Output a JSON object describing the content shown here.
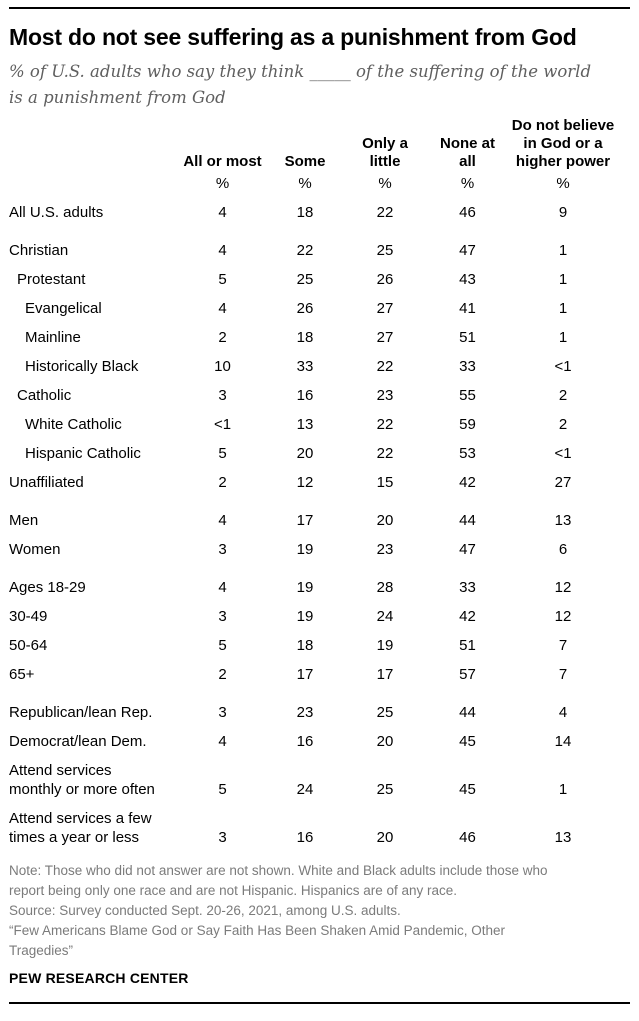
{
  "chart_data": {
    "type": "table",
    "title": "Most do not see suffering as a punishment from God",
    "subtitle": "% of U.S. adults who say they think _____ of the suffering of the world is a punishment from God",
    "unit": "%",
    "columns": [
      "All or most",
      "Some",
      "Only a\nlittle",
      "None at\nall",
      "Do not believe\nin God or a\nhigher power"
    ],
    "rows": [
      {
        "label": "All U.S. adults",
        "indent": 0,
        "gap": false,
        "values": [
          "4",
          "18",
          "22",
          "46",
          "9"
        ]
      },
      {
        "label": "Christian",
        "indent": 0,
        "gap": true,
        "values": [
          "4",
          "22",
          "25",
          "47",
          "1"
        ]
      },
      {
        "label": "Protestant",
        "indent": 1,
        "gap": false,
        "values": [
          "5",
          "25",
          "26",
          "43",
          "1"
        ]
      },
      {
        "label": "Evangelical",
        "indent": 2,
        "gap": false,
        "values": [
          "4",
          "26",
          "27",
          "41",
          "1"
        ]
      },
      {
        "label": "Mainline",
        "indent": 2,
        "gap": false,
        "values": [
          "2",
          "18",
          "27",
          "51",
          "1"
        ]
      },
      {
        "label": "Historically Black",
        "indent": 2,
        "gap": false,
        "values": [
          "10",
          "33",
          "22",
          "33",
          "<1"
        ]
      },
      {
        "label": "Catholic",
        "indent": 1,
        "gap": false,
        "values": [
          "3",
          "16",
          "23",
          "55",
          "2"
        ]
      },
      {
        "label": "White Catholic",
        "indent": 2,
        "gap": false,
        "values": [
          "<1",
          "13",
          "22",
          "59",
          "2"
        ]
      },
      {
        "label": "Hispanic Catholic",
        "indent": 2,
        "gap": false,
        "values": [
          "5",
          "20",
          "22",
          "53",
          "<1"
        ]
      },
      {
        "label": "Unaffiliated",
        "indent": 0,
        "gap": false,
        "values": [
          "2",
          "12",
          "15",
          "42",
          "27"
        ]
      },
      {
        "label": "Men",
        "indent": 0,
        "gap": true,
        "values": [
          "4",
          "17",
          "20",
          "44",
          "13"
        ]
      },
      {
        "label": "Women",
        "indent": 0,
        "gap": false,
        "values": [
          "3",
          "19",
          "23",
          "47",
          "6"
        ]
      },
      {
        "label": "Ages 18-29",
        "indent": 0,
        "gap": true,
        "values": [
          "4",
          "19",
          "28",
          "33",
          "12"
        ]
      },
      {
        "label": "30-49",
        "indent": 0,
        "gap": false,
        "values": [
          "3",
          "19",
          "24",
          "42",
          "12"
        ]
      },
      {
        "label": "50-64",
        "indent": 0,
        "gap": false,
        "values": [
          "5",
          "18",
          "19",
          "51",
          "7"
        ]
      },
      {
        "label": "65+",
        "indent": 0,
        "gap": false,
        "values": [
          "2",
          "17",
          "17",
          "57",
          "7"
        ]
      },
      {
        "label": "Republican/lean Rep.",
        "indent": 0,
        "gap": true,
        "values": [
          "3",
          "23",
          "25",
          "44",
          "4"
        ]
      },
      {
        "label": "Democrat/lean Dem.",
        "indent": 0,
        "gap": false,
        "values": [
          "4",
          "16",
          "20",
          "45",
          "14"
        ]
      },
      {
        "label": "Attend services\nmonthly or more often",
        "indent": 0,
        "gap": false,
        "values": [
          "5",
          "24",
          "25",
          "45",
          "1"
        ]
      },
      {
        "label": "Attend services a few\ntimes a year or less",
        "indent": 0,
        "gap": false,
        "values": [
          "3",
          "16",
          "20",
          "46",
          "13"
        ]
      }
    ]
  },
  "footer": {
    "note": "Note: Those who did not answer are not shown. White and Black adults include those who\nreport being only one race and are not Hispanic. Hispanics are of any race.",
    "source": "Source: Survey conducted Sept. 20-26, 2021, among U.S. adults.",
    "report": "“Few Americans Blame God or Say Faith Has Been Shaken Amid Pandemic, Other\nTragedies”",
    "brand": "PEW RESEARCH CENTER"
  }
}
